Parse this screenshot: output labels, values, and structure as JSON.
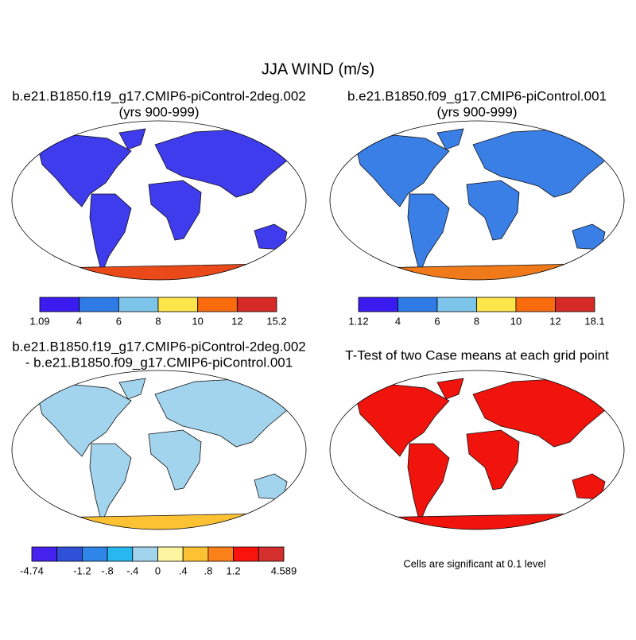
{
  "title": "JJA WIND (m/s)",
  "panels": [
    {
      "title_lines": [
        "b.e21.B1850.f19_g17.CMIP6-piControl-2deg.002",
        "(yrs 900-999)"
      ],
      "colorbar": {
        "colors": [
          "#3a1cf0",
          "#2e7be6",
          "#7dc4ea",
          "#fde64a",
          "#fa6b0e",
          "#d42b27"
        ],
        "labels": [
          "1.09",
          "4",
          "6",
          "8",
          "10",
          "12",
          "15.2"
        ]
      }
    },
    {
      "title_lines": [
        "b.e21.B1850.f09_g17.CMIP6-piControl.001",
        "(yrs 900-999)"
      ],
      "colorbar": {
        "colors": [
          "#3a1cf0",
          "#2e7be6",
          "#7dc4ea",
          "#fde64a",
          "#fa6b0e",
          "#d42b27"
        ],
        "labels": [
          "1.12",
          "4",
          "6",
          "8",
          "10",
          "12",
          "18.1"
        ]
      }
    },
    {
      "title_lines": [
        "b.e21.B1850.f19_g17.CMIP6-piControl-2deg.002",
        "- b.e21.B1850.f09_g17.CMIP6-piControl.001"
      ],
      "colorbar": {
        "colors": [
          "#4622ee",
          "#3050d8",
          "#2f86e8",
          "#27b8f0",
          "#a3d4ee",
          "#fdf5a0",
          "#fcc233",
          "#fb8019",
          "#f8140d",
          "#d3302d"
        ],
        "labels": [
          "-4.74",
          null,
          "-1.2",
          "-.8",
          "-.4",
          "0",
          ".4",
          ".8",
          "1.2",
          null,
          "4.589"
        ]
      }
    },
    {
      "title_lines": [
        "T-Test of two Case means at each grid point"
      ],
      "note": "Cells are significant at 0.1 level"
    }
  ]
}
